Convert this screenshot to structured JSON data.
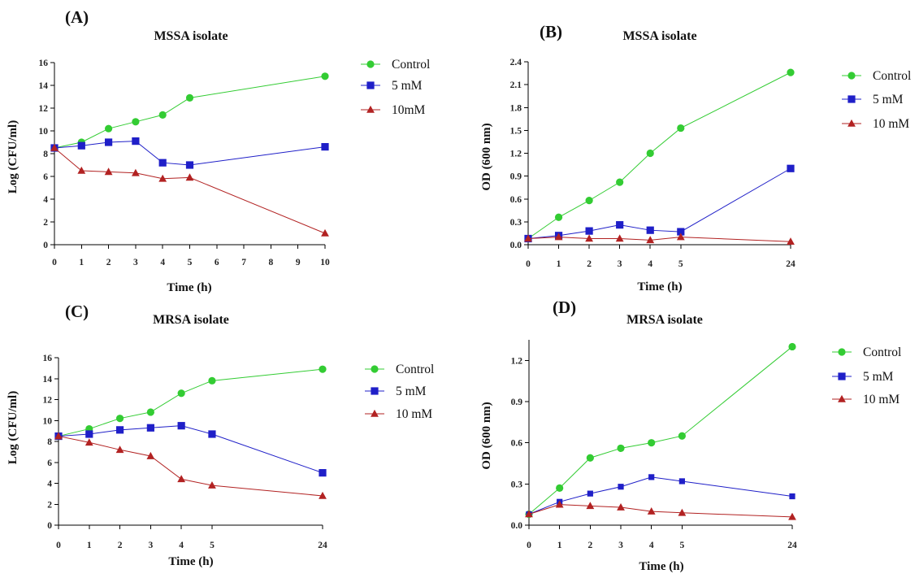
{
  "chart_data": [
    {
      "id": "A",
      "panel_label": "(A)",
      "type": "line",
      "title": "MSSA isolate",
      "xlabel": "Time (h)",
      "ylabel": "Log (CFU/ml)",
      "x_ticks": [
        "0",
        "1",
        "2",
        "3",
        "4",
        "5",
        "6",
        "7",
        "8",
        "9",
        "10"
      ],
      "y_ticks": [
        "0",
        "2",
        "4",
        "6",
        "8",
        "10",
        "12",
        "14",
        "16"
      ],
      "ylim": [
        0,
        16
      ],
      "x": [
        0,
        1,
        2,
        3,
        4,
        5,
        10
      ],
      "series": [
        {
          "name": "Control",
          "color": "#33cc33",
          "marker": "circle",
          "values": [
            8.5,
            9.0,
            10.2,
            10.8,
            11.4,
            12.9,
            14.8
          ]
        },
        {
          "name": "5 mM",
          "color": "#1f1fc8",
          "marker": "square",
          "values": [
            8.5,
            8.7,
            9.0,
            9.1,
            7.2,
            7.0,
            8.6
          ]
        },
        {
          "name": "10mM",
          "color": "#b22222",
          "marker": "triangle",
          "values": [
            8.5,
            6.5,
            6.4,
            6.3,
            5.8,
            5.9,
            1.0
          ]
        }
      ]
    },
    {
      "id": "B",
      "panel_label": "(B)",
      "type": "line",
      "title": "MSSA isolate",
      "xlabel": "Time (h)",
      "ylabel": "OD (600 nm)",
      "x_ticks": [
        "0",
        "1",
        "2",
        "3",
        "4",
        "5",
        "24"
      ],
      "y_ticks": [
        "0.0",
        "0.3",
        "0.6",
        "0.9",
        "1.2",
        "1.5",
        "1.8",
        "2.1",
        "2.4"
      ],
      "ylim": [
        0,
        2.4
      ],
      "x": [
        0,
        1,
        2,
        3,
        4,
        5,
        24
      ],
      "series": [
        {
          "name": "Control",
          "color": "#33cc33",
          "marker": "circle",
          "values": [
            0.08,
            0.36,
            0.58,
            0.82,
            1.2,
            1.53,
            2.26
          ]
        },
        {
          "name": "5 mM",
          "color": "#1f1fc8",
          "marker": "square",
          "values": [
            0.08,
            0.12,
            0.18,
            0.26,
            0.19,
            0.17,
            1.0
          ]
        },
        {
          "name": "10 mM",
          "color": "#b22222",
          "marker": "triangle",
          "values": [
            0.08,
            0.1,
            0.08,
            0.08,
            0.06,
            0.1,
            0.04
          ]
        }
      ]
    },
    {
      "id": "C",
      "panel_label": "(C)",
      "type": "line",
      "title": "MRSA isolate",
      "xlabel": "Time (h)",
      "ylabel": "Log (CFU/ml)",
      "x_ticks": [
        "0",
        "1",
        "2",
        "3",
        "4",
        "5",
        "24"
      ],
      "y_ticks": [
        "0",
        "2",
        "4",
        "6",
        "8",
        "10",
        "12",
        "14",
        "16"
      ],
      "ylim": [
        0,
        16
      ],
      "x": [
        0,
        1,
        2,
        3,
        4,
        5,
        24
      ],
      "series": [
        {
          "name": "Control",
          "color": "#33cc33",
          "marker": "circle",
          "values": [
            8.5,
            9.2,
            10.2,
            10.8,
            12.6,
            13.8,
            14.9
          ]
        },
        {
          "name": "5 mM",
          "color": "#1f1fc8",
          "marker": "square",
          "values": [
            8.5,
            8.7,
            9.1,
            9.3,
            9.5,
            8.7,
            5.0
          ]
        },
        {
          "name": "10 mM",
          "color": "#b22222",
          "marker": "triangle",
          "values": [
            8.5,
            7.9,
            7.2,
            6.6,
            4.4,
            3.8,
            2.8
          ]
        }
      ]
    },
    {
      "id": "D",
      "panel_label": "(D)",
      "type": "line",
      "title": "MRSA isolate",
      "xlabel": "Time (h)",
      "ylabel": "OD (600 nm)",
      "x_ticks": [
        "0",
        "1",
        "2",
        "3",
        "4",
        "5",
        "24"
      ],
      "y_ticks": [
        "0.0",
        "0.3",
        "0.6",
        "0.9",
        "1.2"
      ],
      "ylim": [
        0,
        1.35
      ],
      "x": [
        0,
        1,
        2,
        3,
        4,
        5,
        24
      ],
      "series": [
        {
          "name": "Control",
          "color": "#33cc33",
          "marker": "circle",
          "values": [
            0.08,
            0.27,
            0.49,
            0.56,
            0.6,
            0.65,
            1.3
          ]
        },
        {
          "name": "5 mM",
          "color": "#1f1fc8",
          "marker": "square",
          "values": [
            0.08,
            0.17,
            0.23,
            0.28,
            0.35,
            0.32,
            0.21
          ]
        },
        {
          "name": "10 mM",
          "color": "#b22222",
          "marker": "triangle",
          "values": [
            0.08,
            0.15,
            0.14,
            0.13,
            0.1,
            0.09,
            0.06
          ]
        }
      ]
    }
  ]
}
